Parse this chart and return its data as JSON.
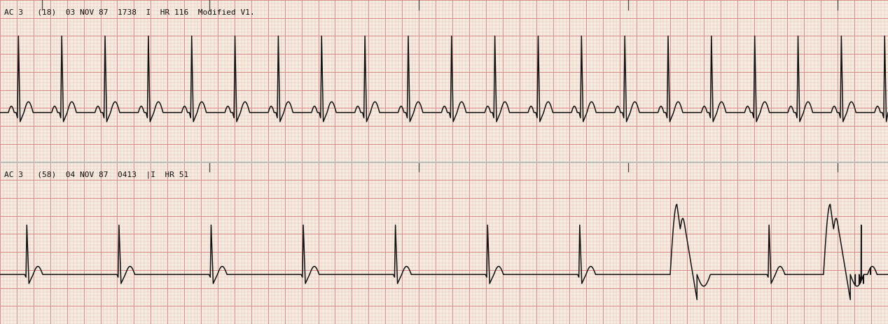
{
  "fig_width": 12.68,
  "fig_height": 4.63,
  "dpi": 100,
  "bg_color": "#f5ede0",
  "grid_minor_color": "#e8b8b8",
  "grid_major_color": "#d88888",
  "strip1_label": "AC 3   (18)  03 NOV 87  1738  I  HR 116  Modified V1.",
  "strip2_label": "AC 3   (58)  04 NOV 87  0413  |I  HR 51",
  "label_fontsize": 8.0,
  "label_color": "#111111",
  "ecg_color": "#111111",
  "ecg_linewidth": 1.1,
  "separator_color": "#bbbbbb"
}
